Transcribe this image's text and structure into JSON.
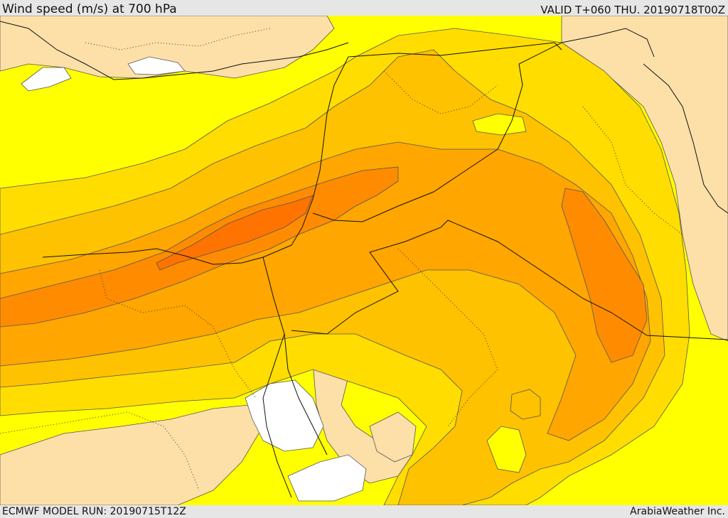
{
  "header": {
    "title": "Wind speed (m/s) at 700 hPa",
    "valid": "VALID T+060 THU. 20190718T00Z"
  },
  "footer": {
    "model_run": "ECMWF MODEL RUN: 20190715T12Z",
    "credit": "ArabiaWeather Inc."
  },
  "colors": {
    "lowest": "#ffffff",
    "low": "#fde0a8",
    "yellow": "#ffff00",
    "gold": "#ffdd00",
    "amber": "#ffc200",
    "orange_light": "#ffa600",
    "orange": "#ff8c00",
    "orange_dark": "#ff7400"
  }
}
